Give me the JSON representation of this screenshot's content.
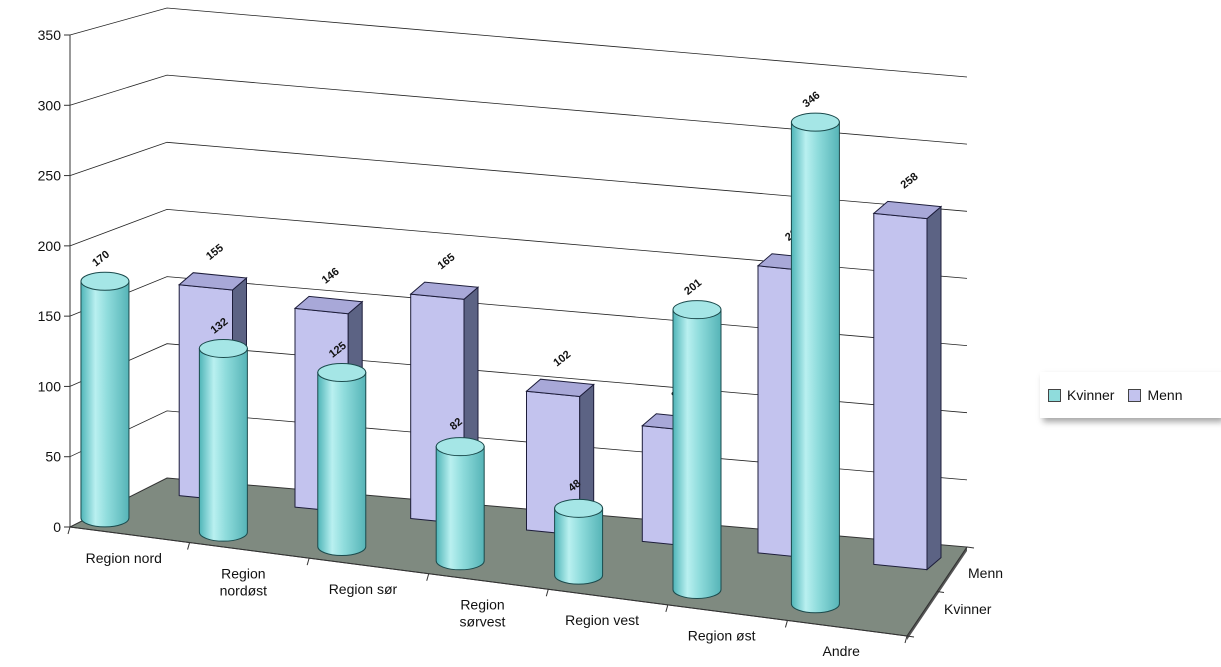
{
  "chart_data": {
    "type": "bar",
    "title": "",
    "xlabel": "",
    "ylabel": "",
    "ylim": [
      0,
      350
    ],
    "y_ticks": [
      "0",
      "50",
      "100",
      "150",
      "200",
      "250",
      "300",
      "350"
    ],
    "categories": [
      "Region nord",
      "Region nordøst",
      "Region sør",
      "Region sørvest",
      "Region vest",
      "Region øst",
      "Andre"
    ],
    "category_label_lines": [
      [
        "Region nord"
      ],
      [
        "Region",
        "nordøst"
      ],
      [
        "Region sør"
      ],
      [
        "Region",
        "sørvest"
      ],
      [
        "Region vest"
      ],
      [
        "Region øst"
      ],
      [
        "Andre"
      ]
    ],
    "depth_labels": [
      "Menn",
      "Kvinner"
    ],
    "series": [
      {
        "name": "Kvinner",
        "shape": "cylinder",
        "color": "#8fdcdc",
        "values": [
          170,
          132,
          125,
          82,
          48,
          201,
          346
        ]
      },
      {
        "name": "Menn",
        "shape": "box",
        "color": "#c3c3ee",
        "values": [
          155,
          146,
          165,
          102,
          85,
          211,
          258
        ]
      }
    ],
    "legend": {
      "position": "right",
      "entries": [
        "Kvinner",
        "Menn"
      ]
    },
    "grid": true,
    "view": "3d"
  }
}
